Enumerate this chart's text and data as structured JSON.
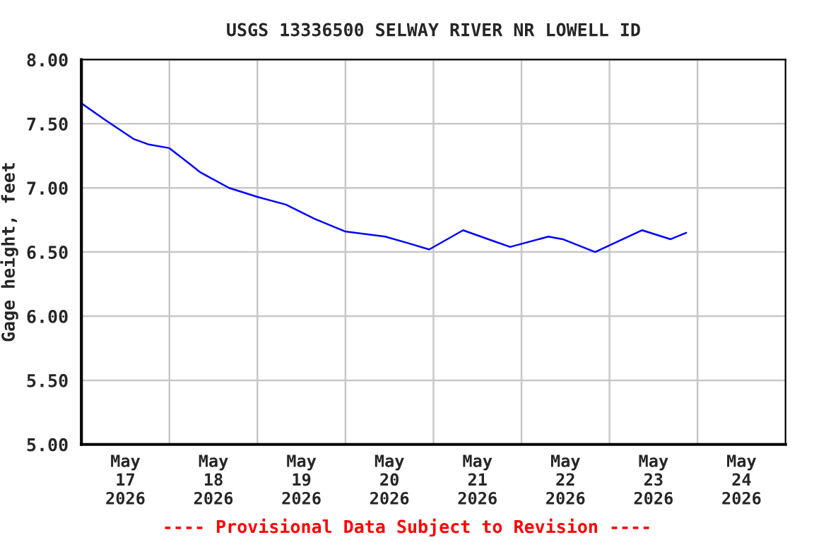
{
  "chart_data": {
    "type": "line",
    "title": "USGS 13336500 SELWAY RIVER NR LOWELL ID",
    "ylabel": "Gage height, feet",
    "annotations": [
      "---- Provisional Data Subject to Revision ----"
    ],
    "x": [
      "2026-05-17T00:00",
      "2026-05-17T06:30",
      "2026-05-17T14:20",
      "2026-05-17T18:10",
      "2026-05-18T00:00",
      "2026-05-18T05:50",
      "2026-05-18T08:30",
      "2026-05-18T16:15",
      "2026-05-19T00:00",
      "2026-05-19T07:45",
      "2026-05-19T15:30",
      "2026-05-20T00:00",
      "2026-05-20T10:50",
      "2026-05-20T17:00",
      "2026-05-20T22:50",
      "2026-05-21T08:05",
      "2026-05-21T15:55",
      "2026-05-21T20:55",
      "2026-05-22T07:20",
      "2026-05-22T11:15",
      "2026-05-22T20:05",
      "2026-05-23T08:55",
      "2026-05-23T16:40",
      "2026-05-23T20:55"
    ],
    "series": [
      {
        "color": "#0000ff",
        "values": [
          7.66,
          7.53,
          7.38,
          7.34,
          7.31,
          7.18,
          7.12,
          7.0,
          6.93,
          6.87,
          6.76,
          6.66,
          6.62,
          6.57,
          6.52,
          6.67,
          6.59,
          6.54,
          6.62,
          6.6,
          6.5,
          6.67,
          6.6,
          6.65
        ]
      }
    ],
    "xlim": [
      "2026-05-17T00:00",
      "2026-05-25T00:00"
    ],
    "xticks": [
      {
        "value": "2026-05-17T12:00",
        "label": "May\n17\n2026"
      },
      {
        "value": "2026-05-18T00:00",
        "label": null
      },
      {
        "value": "2026-05-18T12:00",
        "label": "May\n18\n2026"
      },
      {
        "value": "2026-05-19T00:00",
        "label": null
      },
      {
        "value": "2026-05-19T12:00",
        "label": "May\n19\n2026"
      },
      {
        "value": "2026-05-20T00:00",
        "label": null
      },
      {
        "value": "2026-05-20T12:00",
        "label": "May\n20\n2026"
      },
      {
        "value": "2026-05-21T00:00",
        "label": null
      },
      {
        "value": "2026-05-21T12:00",
        "label": "May\n21\n2026"
      },
      {
        "value": "2026-05-22T00:00",
        "label": null
      },
      {
        "value": "2026-05-22T12:00",
        "label": "May\n22\n2026"
      },
      {
        "value": "2026-05-23T00:00",
        "label": null
      },
      {
        "value": "2026-05-23T12:00",
        "label": "May\n23\n2026"
      },
      {
        "value": "2026-05-24T00:00",
        "label": null
      },
      {
        "value": "2026-05-24T12:00",
        "label": "May\n24\n2026"
      }
    ],
    "ylim": [
      5,
      8
    ],
    "yticks": [
      {
        "value": 5,
        "label": "5.00"
      },
      {
        "value": 5.5,
        "label": "5.50"
      },
      {
        "value": 6,
        "label": "6.00"
      },
      {
        "value": 6.5,
        "label": "6.50"
      },
      {
        "value": 7,
        "label": "7.00"
      },
      {
        "value": 7.5,
        "label": "7.50"
      },
      {
        "value": 8,
        "label": "8.00"
      }
    ],
    "grid": true,
    "line_style": "solid",
    "marker": "none"
  }
}
